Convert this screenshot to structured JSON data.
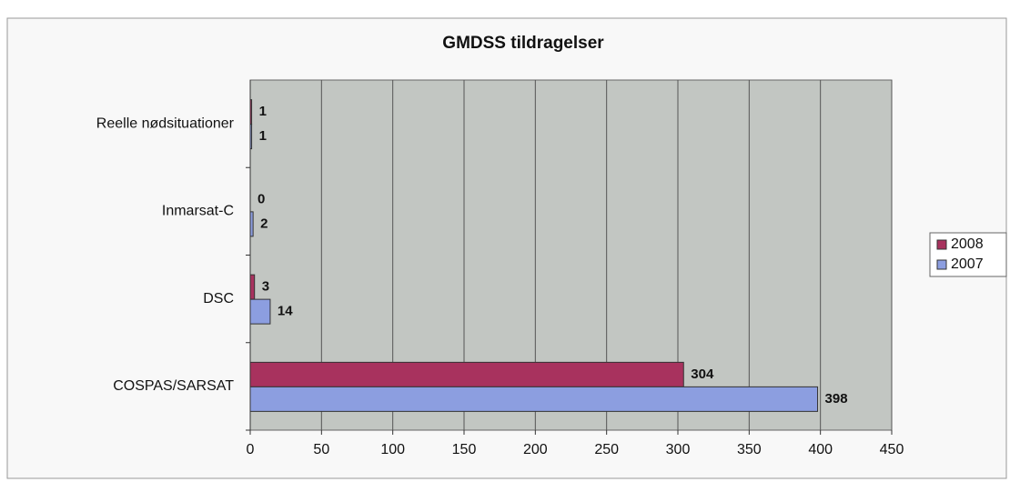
{
  "chart_data": {
    "type": "hbar",
    "title": "GMDSS tildragelser",
    "categories": [
      "COSPAS/SARSAT",
      "DSC",
      "Inmarsat-C",
      "Reelle nødsituationer"
    ],
    "series": [
      {
        "name": "2008",
        "color": "#a8325e",
        "values": [
          304,
          3,
          0,
          1
        ]
      },
      {
        "name": "2007",
        "color": "#8c9ee0",
        "values": [
          398,
          14,
          2,
          1
        ]
      }
    ],
    "xlim": [
      0,
      450
    ],
    "xticks": [
      0,
      50,
      100,
      150,
      200,
      250,
      300,
      350,
      400,
      450
    ],
    "grid": true,
    "legend": "right"
  }
}
